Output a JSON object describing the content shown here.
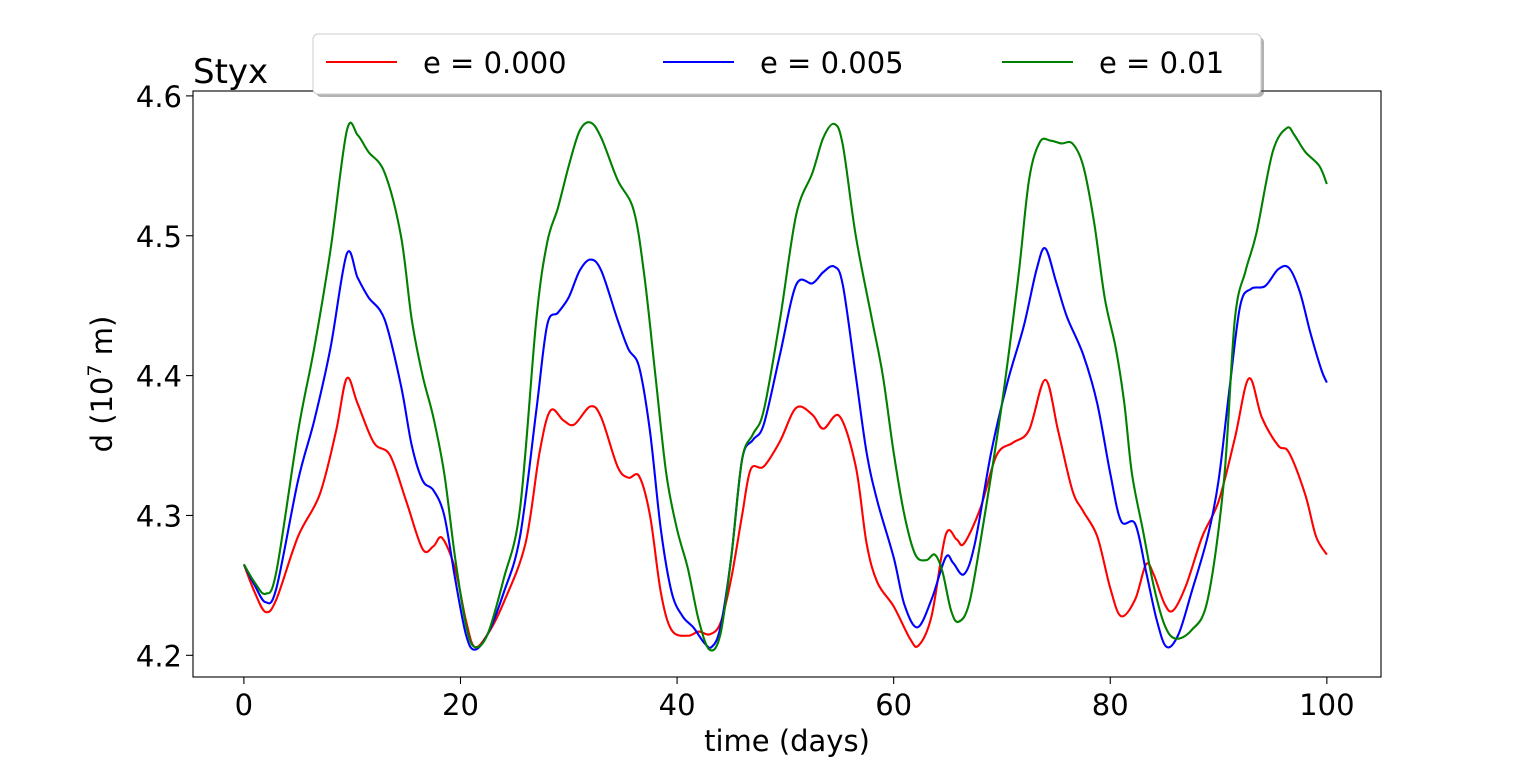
{
  "chart_data": {
    "type": "line",
    "title": "Styx",
    "xlabel": "time (days)",
    "ylabel_main": "d (10",
    "ylabel_sup": "7",
    "ylabel_tail": " m)",
    "xlim": [
      -4.7,
      105
    ],
    "ylim": [
      4.1845,
      4.6035
    ],
    "xticks": [
      0,
      20,
      40,
      60,
      80,
      100
    ],
    "xtick_labels": [
      "0",
      "20",
      "40",
      "60",
      "80",
      "100"
    ],
    "yticks": [
      4.2,
      4.3,
      4.4,
      4.5,
      4.6
    ],
    "ytick_labels": [
      "4.2",
      "4.3",
      "4.4",
      "4.5",
      "4.6"
    ],
    "legend_position": "top-center",
    "series": [
      {
        "name": "e = 0.000",
        "color": "#ff0000",
        "points": [
          [
            0,
            4.265
          ],
          [
            1,
            4.245
          ],
          [
            2,
            4.231
          ],
          [
            3,
            4.24
          ],
          [
            5,
            4.285
          ],
          [
            7,
            4.315
          ],
          [
            8.5,
            4.36
          ],
          [
            9.5,
            4.398
          ],
          [
            10.5,
            4.38
          ],
          [
            12,
            4.352
          ],
          [
            13.5,
            4.343
          ],
          [
            15,
            4.31
          ],
          [
            16.5,
            4.276
          ],
          [
            17.5,
            4.278
          ],
          [
            18.3,
            4.284
          ],
          [
            19.5,
            4.262
          ],
          [
            20.5,
            4.225
          ],
          [
            21.3,
            4.206
          ],
          [
            22.5,
            4.215
          ],
          [
            24,
            4.238
          ],
          [
            26,
            4.28
          ],
          [
            27.3,
            4.345
          ],
          [
            28.3,
            4.375
          ],
          [
            29.5,
            4.368
          ],
          [
            30.5,
            4.365
          ],
          [
            32,
            4.378
          ],
          [
            33,
            4.37
          ],
          [
            34.5,
            4.335
          ],
          [
            35.5,
            4.327
          ],
          [
            36.5,
            4.328
          ],
          [
            37.5,
            4.3
          ],
          [
            38.5,
            4.245
          ],
          [
            39.5,
            4.218
          ],
          [
            41,
            4.214
          ],
          [
            42,
            4.217
          ],
          [
            43,
            4.215
          ],
          [
            44,
            4.223
          ],
          [
            45,
            4.255
          ],
          [
            46,
            4.3
          ],
          [
            46.8,
            4.333
          ],
          [
            48,
            4.335
          ],
          [
            49.5,
            4.353
          ],
          [
            51,
            4.377
          ],
          [
            52.5,
            4.372
          ],
          [
            53.5,
            4.362
          ],
          [
            55,
            4.371
          ],
          [
            56.5,
            4.335
          ],
          [
            57.5,
            4.28
          ],
          [
            58.5,
            4.252
          ],
          [
            60,
            4.235
          ],
          [
            61.5,
            4.212
          ],
          [
            62.3,
            4.207
          ],
          [
            63.5,
            4.228
          ],
          [
            64.8,
            4.286
          ],
          [
            65.8,
            4.283
          ],
          [
            66.5,
            4.28
          ],
          [
            68,
            4.305
          ],
          [
            69.5,
            4.343
          ],
          [
            71,
            4.352
          ],
          [
            72.5,
            4.361
          ],
          [
            74,
            4.397
          ],
          [
            75.2,
            4.36
          ],
          [
            76.5,
            4.318
          ],
          [
            77.5,
            4.303
          ],
          [
            78.8,
            4.285
          ],
          [
            80,
            4.248
          ],
          [
            81,
            4.228
          ],
          [
            82.3,
            4.24
          ],
          [
            83.3,
            4.265
          ],
          [
            84,
            4.258
          ],
          [
            85,
            4.237
          ],
          [
            85.8,
            4.232
          ],
          [
            87,
            4.25
          ],
          [
            88.5,
            4.285
          ],
          [
            90,
            4.31
          ],
          [
            91.5,
            4.355
          ],
          [
            92.8,
            4.398
          ],
          [
            94,
            4.37
          ],
          [
            95.5,
            4.35
          ],
          [
            96.5,
            4.345
          ],
          [
            98,
            4.315
          ],
          [
            99,
            4.285
          ],
          [
            100,
            4.272
          ]
        ]
      },
      {
        "name": "e = 0.005",
        "color": "#0000ff",
        "points": [
          [
            0,
            4.265
          ],
          [
            1,
            4.25
          ],
          [
            2,
            4.238
          ],
          [
            3,
            4.248
          ],
          [
            5,
            4.325
          ],
          [
            6.5,
            4.368
          ],
          [
            8,
            4.42
          ],
          [
            9.5,
            4.487
          ],
          [
            10.5,
            4.47
          ],
          [
            11.5,
            4.456
          ],
          [
            13,
            4.44
          ],
          [
            14.5,
            4.393
          ],
          [
            15.5,
            4.35
          ],
          [
            16.5,
            4.325
          ],
          [
            17.5,
            4.318
          ],
          [
            18.5,
            4.3
          ],
          [
            19.5,
            4.255
          ],
          [
            20.5,
            4.215
          ],
          [
            21.3,
            4.204
          ],
          [
            22.5,
            4.215
          ],
          [
            24,
            4.245
          ],
          [
            25.5,
            4.285
          ],
          [
            27,
            4.375
          ],
          [
            28,
            4.436
          ],
          [
            29,
            4.445
          ],
          [
            30,
            4.456
          ],
          [
            31,
            4.475
          ],
          [
            32,
            4.483
          ],
          [
            33,
            4.475
          ],
          [
            34.5,
            4.44
          ],
          [
            35.5,
            4.419
          ],
          [
            36.5,
            4.406
          ],
          [
            37.5,
            4.36
          ],
          [
            38.5,
            4.29
          ],
          [
            39.5,
            4.245
          ],
          [
            40.5,
            4.228
          ],
          [
            41.5,
            4.22
          ],
          [
            42.5,
            4.209
          ],
          [
            43.2,
            4.206
          ],
          [
            44,
            4.22
          ],
          [
            45,
            4.27
          ],
          [
            46,
            4.34
          ],
          [
            47,
            4.354
          ],
          [
            48,
            4.365
          ],
          [
            49.5,
            4.415
          ],
          [
            51,
            4.465
          ],
          [
            52.5,
            4.466
          ],
          [
            53.5,
            4.474
          ],
          [
            54.5,
            4.478
          ],
          [
            55.3,
            4.465
          ],
          [
            56.5,
            4.4
          ],
          [
            57.5,
            4.345
          ],
          [
            58.5,
            4.31
          ],
          [
            60,
            4.27
          ],
          [
            61,
            4.236
          ],
          [
            62.2,
            4.22
          ],
          [
            63.5,
            4.24
          ],
          [
            64.8,
            4.27
          ],
          [
            65.5,
            4.266
          ],
          [
            66.5,
            4.258
          ],
          [
            67.5,
            4.28
          ],
          [
            69,
            4.345
          ],
          [
            70.5,
            4.395
          ],
          [
            72,
            4.435
          ],
          [
            73.2,
            4.476
          ],
          [
            74,
            4.491
          ],
          [
            75,
            4.467
          ],
          [
            76,
            4.442
          ],
          [
            77.5,
            4.415
          ],
          [
            78.8,
            4.38
          ],
          [
            80,
            4.33
          ],
          [
            81,
            4.296
          ],
          [
            82.3,
            4.294
          ],
          [
            83.3,
            4.26
          ],
          [
            84.3,
            4.225
          ],
          [
            85.2,
            4.206
          ],
          [
            86.3,
            4.215
          ],
          [
            87.5,
            4.245
          ],
          [
            89,
            4.285
          ],
          [
            90,
            4.325
          ],
          [
            91,
            4.39
          ],
          [
            92,
            4.45
          ],
          [
            93,
            4.462
          ],
          [
            94.3,
            4.464
          ],
          [
            95.5,
            4.476
          ],
          [
            96.5,
            4.477
          ],
          [
            97.5,
            4.46
          ],
          [
            98.5,
            4.43
          ],
          [
            99.5,
            4.404
          ],
          [
            100,
            4.395
          ]
        ]
      },
      {
        "name": "e = 0.01",
        "color": "#008000",
        "points": [
          [
            0,
            4.265
          ],
          [
            1,
            4.252
          ],
          [
            2,
            4.244
          ],
          [
            3,
            4.26
          ],
          [
            5,
            4.36
          ],
          [
            6.5,
            4.42
          ],
          [
            8,
            4.49
          ],
          [
            9.5,
            4.575
          ],
          [
            10.5,
            4.572
          ],
          [
            11.5,
            4.56
          ],
          [
            13,
            4.545
          ],
          [
            14.5,
            4.5
          ],
          [
            15.5,
            4.44
          ],
          [
            16.5,
            4.4
          ],
          [
            17.5,
            4.37
          ],
          [
            18.5,
            4.33
          ],
          [
            19.5,
            4.27
          ],
          [
            20.5,
            4.222
          ],
          [
            21.3,
            4.206
          ],
          [
            22.5,
            4.215
          ],
          [
            24,
            4.255
          ],
          [
            25.5,
            4.305
          ],
          [
            27,
            4.44
          ],
          [
            28,
            4.495
          ],
          [
            29,
            4.52
          ],
          [
            30,
            4.55
          ],
          [
            31,
            4.575
          ],
          [
            32,
            4.581
          ],
          [
            33,
            4.57
          ],
          [
            34.5,
            4.54
          ],
          [
            36,
            4.518
          ],
          [
            37,
            4.47
          ],
          [
            38,
            4.4
          ],
          [
            39,
            4.33
          ],
          [
            40,
            4.29
          ],
          [
            41,
            4.262
          ],
          [
            42,
            4.225
          ],
          [
            43,
            4.204
          ],
          [
            44,
            4.215
          ],
          [
            45,
            4.27
          ],
          [
            46,
            4.34
          ],
          [
            47,
            4.358
          ],
          [
            48,
            4.375
          ],
          [
            49.5,
            4.44
          ],
          [
            51,
            4.515
          ],
          [
            52.5,
            4.545
          ],
          [
            53.5,
            4.57
          ],
          [
            54.5,
            4.58
          ],
          [
            55.3,
            4.565
          ],
          [
            56.5,
            4.5
          ],
          [
            58,
            4.44
          ],
          [
            59,
            4.4
          ],
          [
            60,
            4.345
          ],
          [
            61,
            4.3
          ],
          [
            62,
            4.272
          ],
          [
            63,
            4.268
          ],
          [
            63.8,
            4.272
          ],
          [
            64.5,
            4.26
          ],
          [
            65.3,
            4.232
          ],
          [
            66,
            4.224
          ],
          [
            67,
            4.238
          ],
          [
            68.3,
            4.295
          ],
          [
            70,
            4.38
          ],
          [
            71.5,
            4.47
          ],
          [
            72.5,
            4.54
          ],
          [
            73.5,
            4.567
          ],
          [
            74.5,
            4.568
          ],
          [
            75.5,
            4.566
          ],
          [
            76.5,
            4.566
          ],
          [
            77.5,
            4.55
          ],
          [
            78.5,
            4.51
          ],
          [
            79.5,
            4.455
          ],
          [
            80.5,
            4.42
          ],
          [
            81.3,
            4.38
          ],
          [
            82,
            4.33
          ],
          [
            83,
            4.29
          ],
          [
            84,
            4.25
          ],
          [
            85,
            4.222
          ],
          [
            86,
            4.212
          ],
          [
            87.5,
            4.218
          ],
          [
            89,
            4.24
          ],
          [
            90.5,
            4.325
          ],
          [
            91.5,
            4.44
          ],
          [
            92.5,
            4.475
          ],
          [
            93.5,
            4.502
          ],
          [
            95,
            4.56
          ],
          [
            96.3,
            4.577
          ],
          [
            97,
            4.572
          ],
          [
            98,
            4.56
          ],
          [
            99.3,
            4.55
          ],
          [
            100,
            4.537
          ]
        ]
      }
    ]
  }
}
